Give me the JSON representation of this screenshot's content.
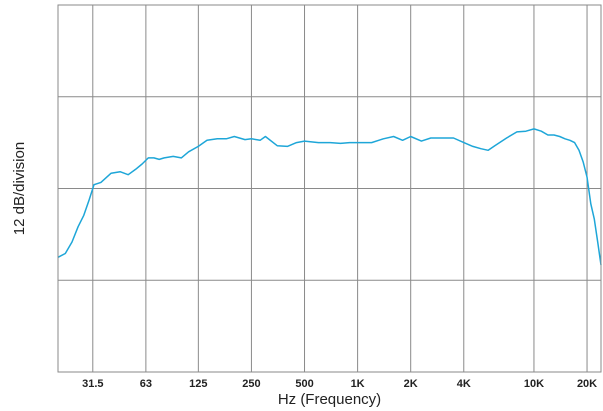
{
  "chart_data": {
    "type": "line",
    "title": "",
    "xlabel": "Hz (Frequency)",
    "ylabel": "12 dB/division",
    "x_scale": "log",
    "xlim": [
      20,
      24000
    ],
    "x_ticks": [
      {
        "value": 31.5,
        "label": "31.5"
      },
      {
        "value": 63,
        "label": "63"
      },
      {
        "value": 125,
        "label": "125"
      },
      {
        "value": 250,
        "label": "250"
      },
      {
        "value": 500,
        "label": "500"
      },
      {
        "value": 1000,
        "label": "1K"
      },
      {
        "value": 2000,
        "label": "2K"
      },
      {
        "value": 4000,
        "label": "4K"
      },
      {
        "value": 10000,
        "label": "10K"
      },
      {
        "value": 20000,
        "label": "20K"
      }
    ],
    "y_unit": "dB",
    "ylim": [
      -24,
      24
    ],
    "y_gridlines": [
      -12,
      0,
      12
    ],
    "grid": true,
    "legend": "none",
    "series": [
      {
        "color": "#1ea6d8",
        "x": [
          20,
          22,
          24,
          26,
          28,
          30,
          32,
          35,
          40,
          45,
          50,
          55,
          60,
          65,
          70,
          75,
          80,
          90,
          100,
          110,
          125,
          140,
          160,
          180,
          200,
          230,
          250,
          280,
          300,
          350,
          400,
          450,
          500,
          600,
          700,
          800,
          900,
          1000,
          1100,
          1200,
          1400,
          1600,
          1800,
          2000,
          2300,
          2600,
          3000,
          3500,
          4000,
          4500,
          5000,
          5500,
          6000,
          7000,
          8000,
          9000,
          10000,
          11000,
          12000,
          13000,
          14000,
          15000,
          16000,
          17000,
          18000,
          19000,
          20000,
          21000,
          22000,
          23000,
          24000
        ],
        "y": [
          -9.0,
          -8.5,
          -7.0,
          -5.0,
          -3.5,
          -1.5,
          0.5,
          0.8,
          2.0,
          2.2,
          1.8,
          2.5,
          3.2,
          4.0,
          4.0,
          3.8,
          4.0,
          4.2,
          4.0,
          4.8,
          5.5,
          6.3,
          6.5,
          6.5,
          6.8,
          6.4,
          6.5,
          6.3,
          6.8,
          5.6,
          5.5,
          6.0,
          6.2,
          6.0,
          6.0,
          5.9,
          6.0,
          6.0,
          6.0,
          6.0,
          6.5,
          6.8,
          6.3,
          6.8,
          6.2,
          6.6,
          6.6,
          6.6,
          6.0,
          5.5,
          5.2,
          5.0,
          5.6,
          6.6,
          7.4,
          7.5,
          7.8,
          7.5,
          7.0,
          7.0,
          6.8,
          6.5,
          6.3,
          6.0,
          5.0,
          3.5,
          1.5,
          -2.0,
          -4.0,
          -7.0,
          -10.0
        ]
      }
    ]
  }
}
